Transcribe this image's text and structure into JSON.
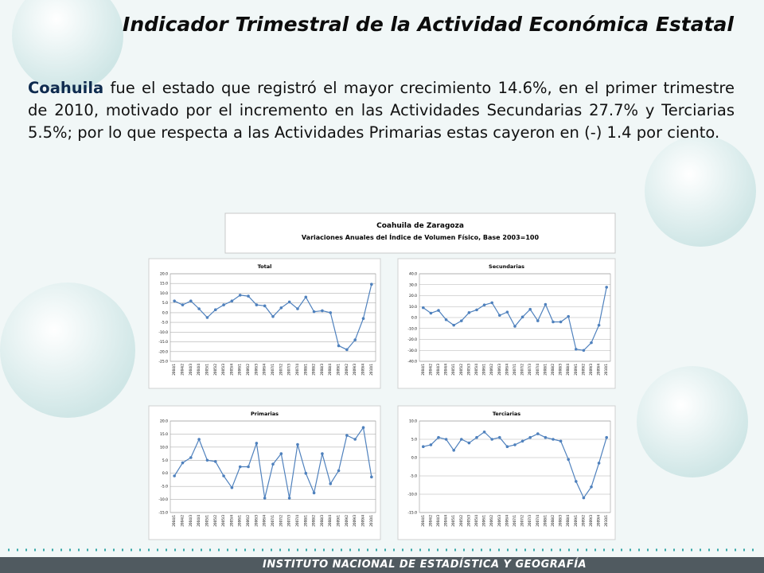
{
  "header": {
    "title": "Indicador Trimestral de la Actividad Económica Estatal"
  },
  "body": {
    "lead": "Coahuila",
    "text": "fue el estado que registró el mayor crecimiento 14.6%, en el primer trimestre de 2010, motivado por el incremento en las Actividades Secundarias 27.7% y Terciarias 5.5%; por lo que respecta a las Actividades Primarias estas cayeron en (-) 1.4 por ciento."
  },
  "chart_header": {
    "title": "Coahuila de Zaragoza",
    "subtitle": "Variaciones Anuales del  Índice de Volumen Físico, Base 2003=100"
  },
  "chart_data": [
    {
      "type": "line",
      "title": "Total",
      "color": "#4f81bd",
      "grid": true,
      "categories": [
        "2004/1",
        "2004/2",
        "2004/3",
        "2004/4",
        "2005/1",
        "2005/2",
        "2005/3",
        "2005/4",
        "2006/1",
        "2006/2",
        "2006/3",
        "2006/4",
        "2007/1",
        "2007/2",
        "2007/3",
        "2007/4",
        "2008/1",
        "2008/2",
        "2008/3",
        "2008/4",
        "2009/1",
        "2009/2",
        "2009/3",
        "2009/4",
        "2010/1"
      ],
      "values": [
        6,
        4,
        6,
        2,
        -2.5,
        1.5,
        4,
        6,
        9,
        8.5,
        4,
        3.5,
        -2,
        2.5,
        5.5,
        2,
        8,
        0.5,
        1,
        0,
        -17,
        -19,
        -14,
        -3,
        14.6
      ],
      "ylim": [
        -25,
        20
      ],
      "yticks": [
        {
          "value": 20,
          "label": "20.0"
        },
        {
          "value": 15,
          "label": "15.0"
        },
        {
          "value": 10,
          "label": "10.0"
        },
        {
          "value": 5,
          "label": "5.0"
        },
        {
          "value": 0,
          "label": "0.0"
        },
        {
          "value": -5,
          "label": "-5.0"
        },
        {
          "value": -10,
          "label": "-10.0"
        },
        {
          "value": -15,
          "label": "-15.0"
        },
        {
          "value": -20,
          "label": "-20.0"
        },
        {
          "value": -25,
          "label": "-25.0"
        }
      ]
    },
    {
      "type": "line",
      "title": "Secundarias",
      "color": "#4f81bd",
      "grid": true,
      "categories": [
        "2004/1",
        "2004/2",
        "2004/3",
        "2004/4",
        "2005/1",
        "2005/2",
        "2005/3",
        "2005/4",
        "2006/1",
        "2006/2",
        "2006/3",
        "2006/4",
        "2007/1",
        "2007/2",
        "2007/3",
        "2007/4",
        "2008/1",
        "2008/2",
        "2008/3",
        "2008/4",
        "2009/1",
        "2009/2",
        "2009/3",
        "2009/4",
        "2010/1"
      ],
      "values": [
        9,
        4,
        6.5,
        -2,
        -7,
        -3,
        4.5,
        7,
        11.5,
        13.5,
        2,
        5,
        -8,
        0.5,
        7.5,
        -3,
        12,
        -4,
        -4,
        1,
        -29,
        -30,
        -23,
        -7,
        27.7
      ],
      "ylim": [
        -40,
        40
      ],
      "yticks": [
        {
          "value": 40,
          "label": "40.0"
        },
        {
          "value": 30,
          "label": "30.0"
        },
        {
          "value": 20,
          "label": "20.0"
        },
        {
          "value": 10,
          "label": "10.0"
        },
        {
          "value": 0,
          "label": "0.0"
        },
        {
          "value": -10,
          "label": "-10.0"
        },
        {
          "value": -20,
          "label": "-20.0"
        },
        {
          "value": -30,
          "label": "-30.0"
        },
        {
          "value": -40,
          "label": "-40.0"
        }
      ]
    },
    {
      "type": "line",
      "title": "Primarias",
      "color": "#4f81bd",
      "grid": true,
      "categories": [
        "2004/1",
        "2004/2",
        "2004/3",
        "2004/4",
        "2005/1",
        "2005/2",
        "2005/3",
        "2005/4",
        "2006/1",
        "2006/2",
        "2006/3",
        "2006/4",
        "2007/1",
        "2007/2",
        "2007/3",
        "2007/4",
        "2008/1",
        "2008/2",
        "2008/3",
        "2008/4",
        "2009/1",
        "2009/2",
        "2009/3",
        "2009/4",
        "2010/1"
      ],
      "values": [
        -1,
        4,
        6,
        13,
        5,
        4.5,
        -1,
        -5.5,
        2.5,
        2.5,
        11.5,
        -9.5,
        3.5,
        7.5,
        -9.5,
        11,
        0,
        -7.5,
        7.5,
        -4,
        1,
        14.5,
        13,
        17.5,
        -1.4
      ],
      "ylim": [
        -15,
        20
      ],
      "yticks": [
        {
          "value": 20,
          "label": "20.0"
        },
        {
          "value": 15,
          "label": "15.0"
        },
        {
          "value": 10,
          "label": "10.0"
        },
        {
          "value": 5,
          "label": "5.0"
        },
        {
          "value": 0,
          "label": "0.0"
        },
        {
          "value": -5,
          "label": "-5.0"
        },
        {
          "value": -10,
          "label": "-10.0"
        },
        {
          "value": -15,
          "label": "-15.0"
        }
      ]
    },
    {
      "type": "line",
      "title": "Terciarias",
      "color": "#4f81bd",
      "grid": true,
      "categories": [
        "2004/1",
        "2004/2",
        "2004/3",
        "2004/4",
        "2005/1",
        "2005/2",
        "2005/3",
        "2005/4",
        "2006/1",
        "2006/2",
        "2006/3",
        "2006/4",
        "2007/1",
        "2007/2",
        "2007/3",
        "2007/4",
        "2008/1",
        "2008/2",
        "2008/3",
        "2008/4",
        "2009/1",
        "2009/2",
        "2009/3",
        "2009/4",
        "2010/1"
      ],
      "values": [
        3,
        3.5,
        5.5,
        5,
        2,
        5,
        4,
        5.5,
        7,
        5,
        5.5,
        3,
        3.5,
        4.5,
        5.5,
        6.5,
        5.5,
        5,
        4.5,
        -0.5,
        -6.5,
        -11,
        -8,
        -1.5,
        5.5
      ],
      "ylim": [
        -15,
        10
      ],
      "yticks": [
        {
          "value": 10,
          "label": "10.0"
        },
        {
          "value": 5,
          "label": "5.0"
        },
        {
          "value": 0,
          "label": "0.0"
        },
        {
          "value": -5,
          "label": "-5.0"
        },
        {
          "value": -10,
          "label": "-10.0"
        },
        {
          "value": -15,
          "label": "-15.0"
        }
      ]
    }
  ],
  "footer": {
    "text": "INSTITUTO NACIONAL DE ESTADÍSTICA Y GEOGRAFÍA"
  }
}
